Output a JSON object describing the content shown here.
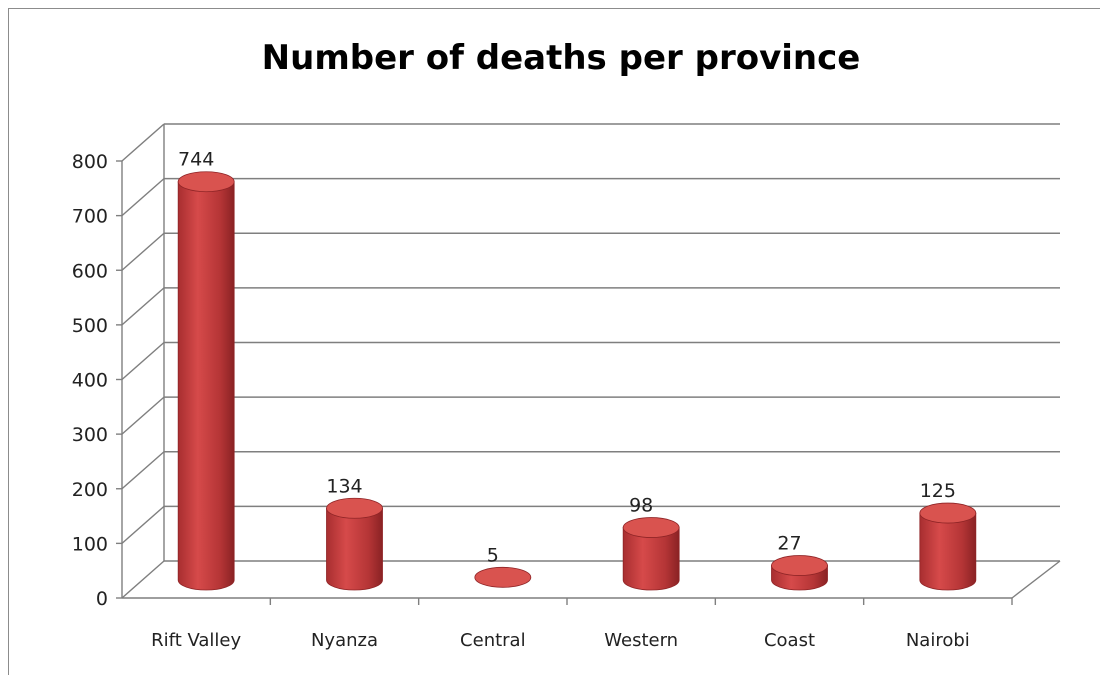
{
  "chart_data": {
    "type": "bar",
    "title": "Number of deaths per province",
    "categories": [
      "Rift Valley",
      "Nyanza",
      "Central",
      "Western",
      "Coast",
      "Nairobi"
    ],
    "values": [
      744,
      134,
      5,
      98,
      27,
      125
    ],
    "data_labels": [
      "744",
      "134",
      "5",
      "98",
      "27",
      "125"
    ],
    "y_ticks": [
      "0",
      "100",
      "200",
      "300",
      "400",
      "500",
      "600",
      "700",
      "800"
    ],
    "ylim": [
      0,
      800
    ],
    "grid": true,
    "legend": "none",
    "style": "3d-cylinder"
  },
  "colors": {
    "bar": "#c0393a",
    "bar_dark": "#8f2426",
    "bar_top": "#d9534f",
    "grid": "#7f7f7f"
  }
}
